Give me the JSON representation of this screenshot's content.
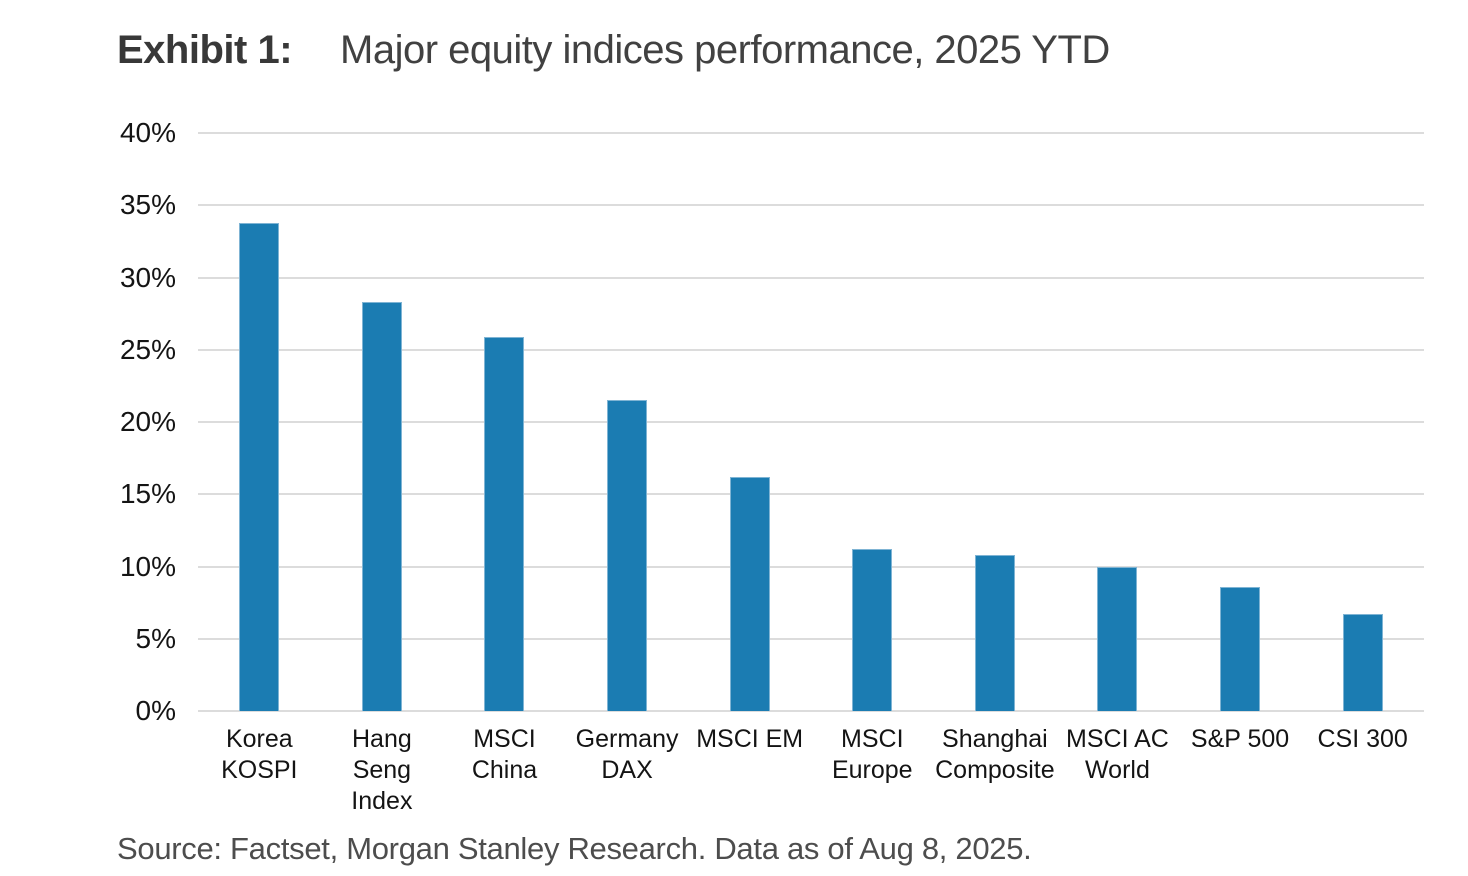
{
  "title": {
    "exhibit_label": "Exhibit 1:",
    "text": "Major equity indices performance, 2025 YTD"
  },
  "source": "Source: Factset, Morgan Stanley Research. Data as of Aug 8, 2025.",
  "chart_data": {
    "type": "bar",
    "title": "Major equity indices performance, 2025 YTD",
    "categories": [
      "Korea KOSPI",
      "Hang Seng Index",
      "MSCI China",
      "Germany DAX",
      "MSCI EM",
      "MSCI Europe",
      "Shanghai Composite",
      "MSCI AC World",
      "S&P 500",
      "CSI 300"
    ],
    "values": [
      33.8,
      28.3,
      25.9,
      21.5,
      16.2,
      11.2,
      10.8,
      10.0,
      8.6,
      6.7
    ],
    "label_lines": [
      [
        "Korea KOSPI"
      ],
      [
        "Hang Seng",
        "Index"
      ],
      [
        "MSCI China"
      ],
      [
        "Germany",
        "DAX"
      ],
      [
        "MSCI EM"
      ],
      [
        "MSCI",
        "Europe"
      ],
      [
        "Shanghai",
        "Composite"
      ],
      [
        "MSCI AC",
        "World"
      ],
      [
        "S&P 500"
      ],
      [
        "CSI 300"
      ]
    ],
    "xlabel": "",
    "ylabel": "",
    "ylim": [
      0,
      40
    ],
    "ytick_step": 5,
    "ytick_labels": [
      "40%",
      "35%",
      "30%",
      "25%",
      "20%",
      "15%",
      "10%",
      "5%",
      "0%"
    ],
    "grid": true,
    "legend": false,
    "bar_color": "#1b7cb2",
    "bar_border_color": "#7fb4d4",
    "gridline_color": "#dcdcdc"
  }
}
